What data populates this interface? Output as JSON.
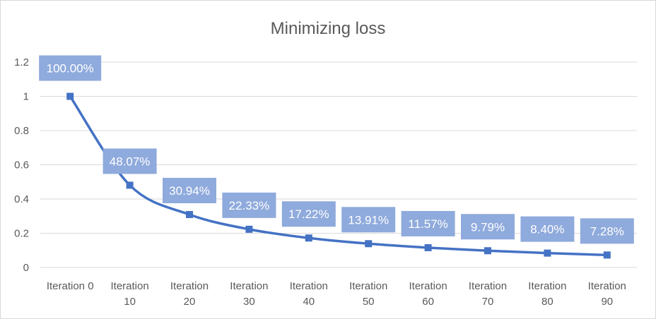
{
  "chart_data": {
    "type": "line",
    "title": "Minimizing loss",
    "xlabel": "",
    "ylabel": "",
    "categories": [
      [
        "Iteration 0"
      ],
      [
        "Iteration",
        "10"
      ],
      [
        "Iteration",
        "20"
      ],
      [
        "Iteration",
        "30"
      ],
      [
        "Iteration",
        "40"
      ],
      [
        "Iteration",
        "50"
      ],
      [
        "Iteration",
        "60"
      ],
      [
        "Iteration",
        "70"
      ],
      [
        "Iteration",
        "80"
      ],
      [
        "Iteration",
        "90"
      ]
    ],
    "series": [
      {
        "values": [
          1.0,
          0.4807,
          0.3094,
          0.2233,
          0.1722,
          0.1391,
          0.1157,
          0.0979,
          0.084,
          0.0728
        ],
        "data_labels": [
          "100.00%",
          "48.07%",
          "30.94%",
          "22.33%",
          "17.22%",
          "13.91%",
          "11.57%",
          "9.79%",
          "8.40%",
          "7.28%"
        ]
      }
    ],
    "ylim": [
      0,
      1.2
    ],
    "yticks": [
      "0",
      "0.2",
      "0.4",
      "0.6",
      "0.8",
      "1",
      "1.2"
    ],
    "grid": true,
    "legend": "none",
    "colors": {
      "line": "#4472c4",
      "label_box": "#8faadc",
      "grid": "#d9d9d9",
      "text": "#595959"
    }
  }
}
